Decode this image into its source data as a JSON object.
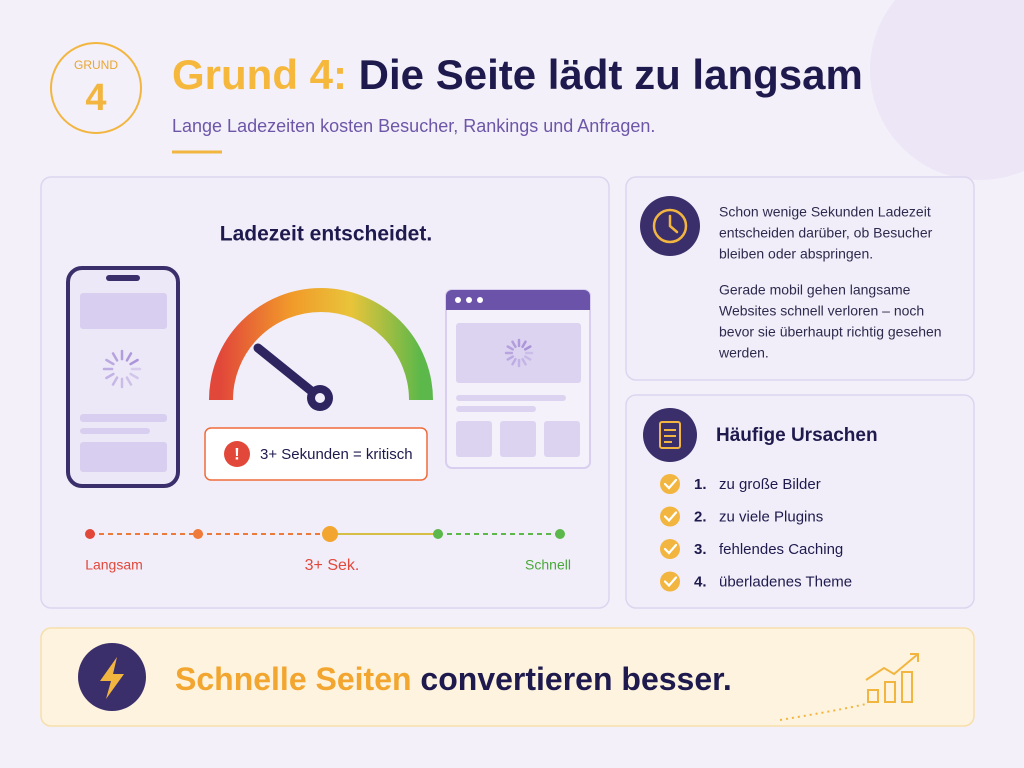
{
  "badge": {
    "label": "GRUND",
    "number": "4"
  },
  "header": {
    "title_highlight": "Grund 4:",
    "title_rest": "Die Seite lädt zu langsam",
    "subtitle": "Lange Ladezeiten kosten Besucher, Rankings und Anfragen."
  },
  "speed_panel": {
    "heading": "Ladezeit entscheidet.",
    "warning": "3+ Sekunden = kritisch",
    "scale": {
      "slow": "Langsam",
      "middle": "3+ Sek.",
      "fast": "Schnell"
    }
  },
  "info_panel": {
    "paragraphs": [
      [
        "Schon wenige Sekunden Ladezeit",
        "entscheiden darüber, ob Besucher",
        "bleiben oder abspringen."
      ],
      [
        "Gerade mobil gehen langsame",
        "Websites schnell verloren – noch",
        "bevor sie überhaupt richtig gesehen",
        "werden."
      ]
    ]
  },
  "causes": {
    "title": "Häufige Ursachen",
    "items": [
      {
        "number": "1.",
        "text": "zu große Bilder"
      },
      {
        "number": "2.",
        "text": "zu viele Plugins"
      },
      {
        "number": "3.",
        "text": "fehlendes Caching"
      },
      {
        "number": "4.",
        "text": "überladenes Theme"
      }
    ]
  },
  "banner": {
    "highlight": "Schnelle Seiten",
    "rest": "convertieren besser."
  }
}
